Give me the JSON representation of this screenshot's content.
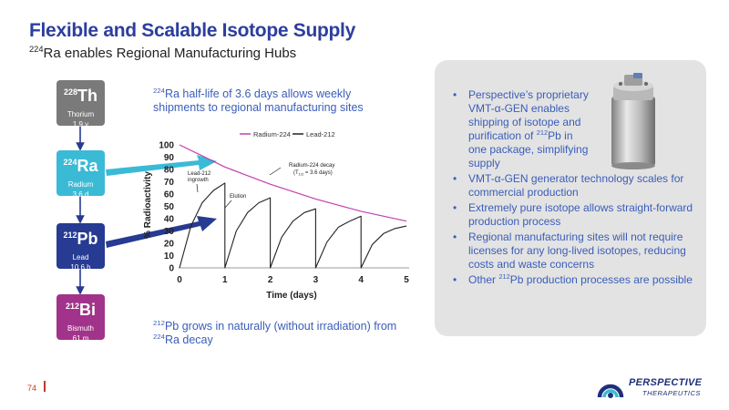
{
  "header": {
    "title": "Flexible and Scalable Isotope Supply",
    "subtitle_sup": "224",
    "subtitle_text": "Ra enables Regional Manufacturing Hubs"
  },
  "chain": [
    {
      "mass": "228",
      "symbol": "Th",
      "name": "Thorium",
      "half_life": "1.9 y",
      "color": "#7a7a7a"
    },
    {
      "mass": "224",
      "symbol": "Ra",
      "name": "Radium",
      "half_life": "3.6 d",
      "color": "#3bbad6"
    },
    {
      "mass": "212",
      "symbol": "Pb",
      "name": "Lead",
      "half_life": "10.6 h",
      "color": "#263b91"
    },
    {
      "mass": "212",
      "symbol": "Bi",
      "name": "Bismuth",
      "half_life": "61 m",
      "color": "#a2338a"
    }
  ],
  "notes": {
    "top_sup": "224",
    "top_text": "Ra half-life of 3.6 days allows weekly shipments to regional manufacturing sites",
    "bottom_sup1": "212",
    "bottom_text1": "Pb grows in naturally (without irradiation) from ",
    "bottom_sup2": "224",
    "bottom_text2": "Ra decay"
  },
  "bullets": {
    "b1_a": "Perspective’s proprietary VMT-α-GEN enables shipping of isotope and purification of ",
    "b1_sup": "212",
    "b1_b": "Pb in one package, simplifying supply",
    "b2": "VMT-α-GEN generator technology scales for commercial production",
    "b3": "Extremely pure isotope allows straight-forward production process",
    "b4": "Regional manufacturing sites will not require licenses for any long-lived isotopes, reducing costs and waste concerns",
    "b5_a": "Other ",
    "b5_sup": "212",
    "b5_b": "Pb production processes are possible"
  },
  "chart_data": {
    "type": "line",
    "xlabel": "Time (days)",
    "ylabel": "% Radioactivity",
    "xlim": [
      0,
      5
    ],
    "ylim": [
      0,
      100
    ],
    "x_ticks": [
      "0",
      "1",
      "2",
      "3",
      "4",
      "5"
    ],
    "y_ticks": [
      "0",
      "10",
      "20",
      "30",
      "40",
      "50",
      "60",
      "70",
      "80",
      "90",
      "100"
    ],
    "legend_position": "top",
    "series": [
      {
        "name": "Radium-224",
        "color": "#c23fb1",
        "x": [
          0,
          0.5,
          1,
          1.5,
          2,
          2.5,
          3,
          3.5,
          4,
          4.5,
          5
        ],
        "y": [
          100,
          91,
          82,
          75,
          68,
          62,
          56,
          51,
          46,
          42,
          38
        ]
      },
      {
        "name": "Lead-212",
        "color": "#222222",
        "x": [
          0,
          0.25,
          0.5,
          0.75,
          1,
          1,
          1.25,
          1.5,
          1.75,
          2,
          2,
          2.25,
          2.5,
          2.75,
          3,
          3,
          3.25,
          3.5,
          3.75,
          4,
          4,
          4.25,
          4.5,
          4.75,
          5
        ],
        "y": [
          0,
          34,
          53,
          63,
          69,
          0,
          30,
          45,
          53,
          57,
          0,
          25,
          38,
          45,
          48,
          0,
          21,
          33,
          38,
          42,
          0,
          19,
          28,
          32,
          34
        ]
      }
    ],
    "annotations": {
      "ingrowth_line1": "Lead-212",
      "ingrowth_line2": "ingrowth",
      "elution": "Elution",
      "decay_line1": "Radium-224 decay",
      "decay_line2": "(T",
      "decay_sub": "1/2",
      "decay_line2b": " = 3.6 days)"
    }
  },
  "footer": {
    "page_number": "74",
    "brand": "PERSPECTIVE",
    "brand_sub": "THERAPEUTICS"
  },
  "colors": {
    "title": "#2c3e9e",
    "note": "#3a5db9",
    "arrow_ra": "#3bbad6",
    "arrow_pb": "#263b91"
  }
}
